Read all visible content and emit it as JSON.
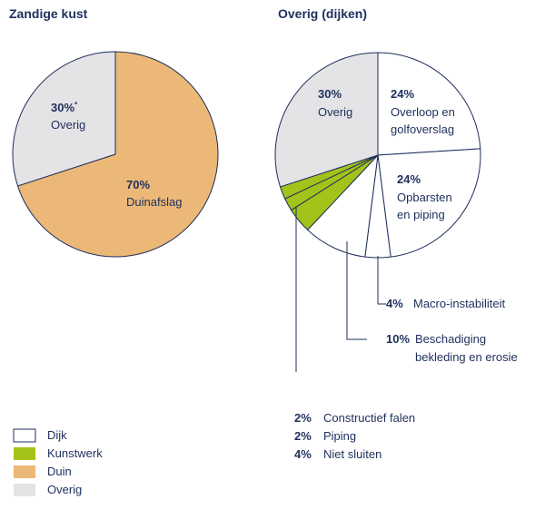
{
  "chart_data": [
    {
      "type": "pie",
      "title": "Zandige kust",
      "slices": [
        {
          "label": "Duinafslag",
          "value": 70,
          "value_label": "70%",
          "category": "Duin"
        },
        {
          "label": "Overig",
          "value": 30,
          "value_label": "30%",
          "marker": "*",
          "category": "Overig"
        }
      ]
    },
    {
      "type": "pie",
      "title": "Overig (dijken)",
      "slices": [
        {
          "label": "Overloop en golfoverslag",
          "value": 24,
          "value_label": "24%",
          "category": "Dijk"
        },
        {
          "label": "Opbarsten en piping",
          "value": 24,
          "value_label": "24%",
          "category": "Dijk"
        },
        {
          "label": "Macro-instabiliteit",
          "value": 4,
          "value_label": "4%",
          "category": "Dijk"
        },
        {
          "label": "Beschadiging bekleding en erosie",
          "value": 10,
          "value_label": "10%",
          "category": "Dijk"
        },
        {
          "label": "Niet sluiten",
          "value": 4,
          "value_label": "4%",
          "category": "Kunstwerk"
        },
        {
          "label": "Piping",
          "value": 2,
          "value_label": "2%",
          "category": "Kunstwerk"
        },
        {
          "label": "Constructief falen",
          "value": 2,
          "value_label": "2%",
          "category": "Kunstwerk"
        },
        {
          "label": "Overig",
          "value": 30,
          "value_label": "30%",
          "category": "Overig"
        }
      ]
    }
  ],
  "legend": [
    {
      "label": "Dijk",
      "color": "#ffffff",
      "border": "#1e2f5c"
    },
    {
      "label": "Kunstwerk",
      "color": "#a3c31a"
    },
    {
      "label": "Duin",
      "color": "#ecb877"
    },
    {
      "label": "Overig",
      "color": "#e4e4e6"
    }
  ],
  "colors": {
    "stroke": "#1e2f5c",
    "Dijk": "#ffffff",
    "Kunstwerk": "#a3c31a",
    "Duin": "#ecb877",
    "Overig": "#e4e4e6"
  },
  "callouts_bottom": [
    {
      "value_label": "2%",
      "label": "Constructief falen"
    },
    {
      "value_label": "2%",
      "label": "Piping"
    },
    {
      "value_label": "4%",
      "label": "Niet sluiten"
    }
  ]
}
